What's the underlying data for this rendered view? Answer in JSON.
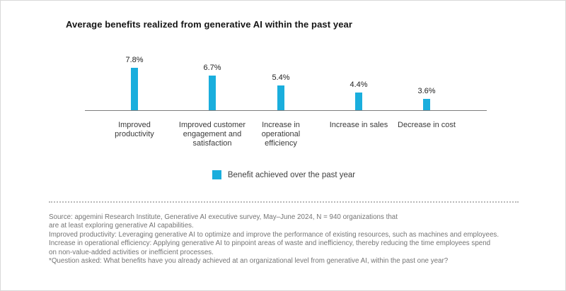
{
  "title": "Average benefits realized from generative AI within the past year",
  "chart_data": {
    "type": "bar",
    "title": "Average benefits realized from generative AI within the past year",
    "categories": [
      "Improved productivity",
      "Improved customer engagement and satisfaction",
      "Increase in operational efficiency",
      "Increase in sales",
      "Decrease in cost"
    ],
    "values": [
      7.8,
      6.7,
      5.4,
      4.4,
      3.6
    ],
    "value_labels": [
      "7.8%",
      "6.7%",
      "5.4%",
      "4.4%",
      "3.6%"
    ],
    "xlabel": "",
    "ylabel": "",
    "unit": "%",
    "grid": false,
    "legend_position": "bottom-center",
    "legend": [
      "Benefit achieved over the past year"
    ],
    "bar_color": "#1aaedd",
    "axis_color": "#7d7d7d"
  },
  "legend": {
    "label": "Benefit achieved over the past year",
    "swatch_color": "#1aaedd"
  },
  "footnote": {
    "lines": [
      "Source: apgemini Research Institute, Generative AI executive survey, May–June 2024, N = 940 organizations that",
      "are at least exploring generative AI capabilities.",
      "Improved productivity: Leveraging generative AI to optimize and improve the performance of existing resources, such as machines and employees.",
      "Increase in operational efficiency: Applying generative AI to pinpoint areas of waste and inefficiency, thereby reducing the time employees spend",
      "on non-value-added activities or inefficient processes.",
      "*Question asked: What benefits have you already achieved at an organizational level from generative AI, within the past one year?"
    ]
  }
}
